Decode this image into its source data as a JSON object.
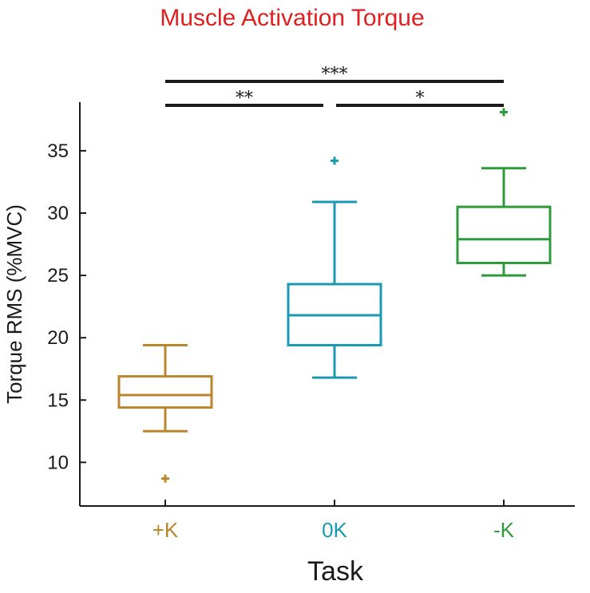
{
  "chart_data": {
    "type": "box",
    "title": "Muscle Activation Torque",
    "xlabel": "Task",
    "ylabel": "Torque RMS (%MVC)",
    "ylim": [
      6.5,
      38.9
    ],
    "yticks": [
      10,
      15,
      20,
      25,
      30,
      35
    ],
    "grid": false,
    "categories": [
      "+K",
      "0K",
      "-K"
    ],
    "colors": {
      "title": "#e02020",
      "+K": "#b8862b",
      "0K": "#1a9ab0",
      "-K": "#2e9b3a",
      "axis": "#1a1a1a"
    },
    "boxes": [
      {
        "category": "+K",
        "whisker_low": 12.5,
        "q1": 14.4,
        "median": 15.4,
        "q3": 16.9,
        "whisker_high": 19.4,
        "outliers": [
          8.7
        ]
      },
      {
        "category": "0K",
        "whisker_low": 16.8,
        "q1": 19.4,
        "median": 21.8,
        "q3": 24.3,
        "whisker_high": 30.9,
        "outliers": [
          34.2
        ]
      },
      {
        "category": "-K",
        "whisker_low": 25.0,
        "q1": 26.0,
        "median": 27.9,
        "q3": 30.5,
        "whisker_high": 33.6,
        "outliers": [
          38.1
        ]
      }
    ],
    "significance": [
      {
        "from": "+K",
        "to": "-K",
        "label": "***",
        "level": 3
      },
      {
        "from": "+K",
        "to": "0K",
        "label": "**",
        "level": 2
      },
      {
        "from": "0K",
        "to": "-K",
        "label": "*",
        "level": 2
      }
    ]
  }
}
